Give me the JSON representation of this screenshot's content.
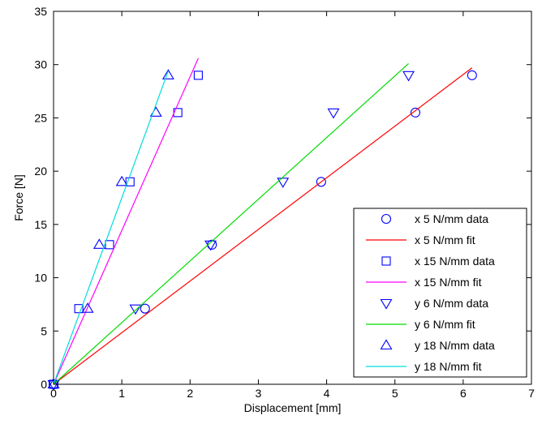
{
  "chart_data": {
    "type": "scatter",
    "title": "",
    "xlabel": "Displacement [mm]",
    "ylabel": "Force [N]",
    "xlim": [
      0,
      7
    ],
    "ylim": [
      0,
      35
    ],
    "xticks": [
      0,
      1,
      2,
      3,
      4,
      5,
      6,
      7
    ],
    "yticks": [
      0,
      5,
      10,
      15,
      20,
      25,
      30,
      35
    ],
    "grid": false,
    "legend_position": "bottom-right",
    "series": [
      {
        "name": "x 5 N/mm data",
        "kind": "markers",
        "marker": "circle",
        "color": "#0000ff",
        "x": [
          0,
          1.34,
          2.32,
          3.92,
          5.3,
          6.13
        ],
        "y": [
          0,
          7.1,
          13.1,
          19.0,
          25.5,
          29.0
        ]
      },
      {
        "name": "x 5 N/mm fit",
        "kind": "line",
        "color": "#ff0000",
        "x": [
          0,
          6.13
        ],
        "y": [
          0,
          29.7
        ]
      },
      {
        "name": "x 15 N/mm data",
        "kind": "markers",
        "marker": "square",
        "color": "#0000ff",
        "x": [
          0,
          0.37,
          0.82,
          1.12,
          1.82,
          2.12
        ],
        "y": [
          0,
          7.1,
          13.1,
          19.0,
          25.5,
          29.0
        ]
      },
      {
        "name": "x 15 N/mm fit",
        "kind": "line",
        "color": "#ff00ff",
        "x": [
          0,
          2.12
        ],
        "y": [
          0,
          30.6
        ]
      },
      {
        "name": "y 6 N/mm data",
        "kind": "markers",
        "marker": "triangle-down",
        "color": "#0000ff",
        "x": [
          0,
          1.2,
          2.3,
          3.36,
          4.1,
          5.2
        ],
        "y": [
          0,
          7.1,
          13.1,
          19.0,
          25.5,
          29.0
        ]
      },
      {
        "name": "y 6 N/mm fit",
        "kind": "line",
        "color": "#00dd00",
        "x": [
          0,
          5.2
        ],
        "y": [
          0,
          30.1
        ]
      },
      {
        "name": "y 18 N/mm data",
        "kind": "markers",
        "marker": "triangle-up",
        "color": "#0000ff",
        "x": [
          0,
          0.5,
          0.67,
          1.0,
          1.5,
          1.68
        ],
        "y": [
          0,
          7.1,
          13.1,
          19.0,
          25.5,
          29.0
        ]
      },
      {
        "name": "y 18 N/mm fit",
        "kind": "line",
        "color": "#00dddd",
        "x": [
          0,
          1.68
        ],
        "y": [
          0,
          29.4
        ]
      }
    ]
  }
}
